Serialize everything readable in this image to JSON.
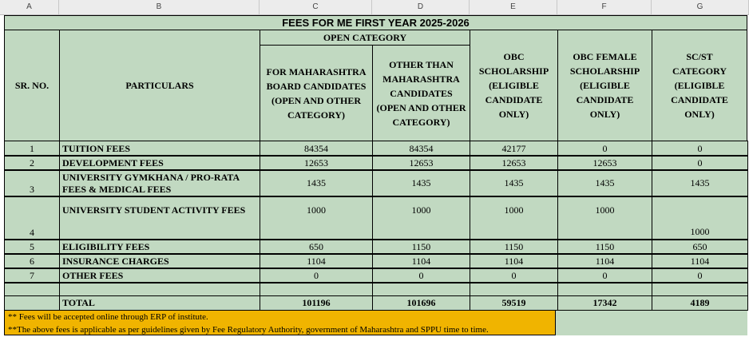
{
  "column_headers": [
    "A",
    "B",
    "C",
    "D",
    "E",
    "F",
    "G"
  ],
  "title": "FEES FOR ME FIRST YEAR 2025-2026",
  "open_category": "OPEN CATEGORY",
  "headers": {
    "sr_no": "SR. NO.",
    "particulars": "PARTICULARS",
    "c": "FOR MAHARASHTRA BOARD CANDIDATES (OPEN AND OTHER CATEGORY)",
    "d": "OTHER THAN MAHARASHTRA CANDIDATES (OPEN AND OTHER CATEGORY)",
    "e": "OBC SCHOLARSHIP (ELIGIBLE CANDIDATE ONLY)",
    "f": "OBC FEMALE SCHOLARSHIP (ELIGIBLE CANDIDATE ONLY)",
    "g": "SC/ST CATEGORY (ELIGIBLE CANDIDATE ONLY)"
  },
  "rows": [
    {
      "sr": "1",
      "name": "TUITION FEES",
      "c": "84354",
      "d": "84354",
      "e": "42177",
      "f": "0",
      "g": "0"
    },
    {
      "sr": "2",
      "name": "DEVELOPMENT FEES",
      "c": "12653",
      "d": "12653",
      "e": "12653",
      "f": "12653",
      "g": "0"
    },
    {
      "sr": "3",
      "name": "UNIVERSITY GYMKHANA / PRO-RATA FEES & MEDICAL FEES",
      "c": "1435",
      "d": "1435",
      "e": "1435",
      "f": "1435",
      "g": "1435"
    },
    {
      "sr": "4",
      "name": "UNIVERSITY STUDENT ACTIVITY FEES",
      "c": "1000",
      "d": "1000",
      "e": "1000",
      "f": "1000",
      "g": "1000"
    },
    {
      "sr": "5",
      "name": "ELIGIBILITY FEES",
      "c": "650",
      "d": "1150",
      "e": "1150",
      "f": "1150",
      "g": "650"
    },
    {
      "sr": "6",
      "name": "INSURANCE CHARGES",
      "c": "1104",
      "d": "1104",
      "e": "1104",
      "f": "1104",
      "g": "1104"
    },
    {
      "sr": "7",
      "name": "OTHER FEES",
      "c": "0",
      "d": "0",
      "e": "0",
      "f": "0",
      "g": "0"
    }
  ],
  "total": {
    "label": "TOTAL",
    "c": "101196",
    "d": "101696",
    "e": "59519",
    "f": "17342",
    "g": "4189"
  },
  "notes": [
    "** Fees will be accepted online through ERP of institute.",
    "**The above fees is applicable as per guidelines given by  Fee Regulatory Authority, government of Maharashtra and SPPU time to time."
  ]
}
